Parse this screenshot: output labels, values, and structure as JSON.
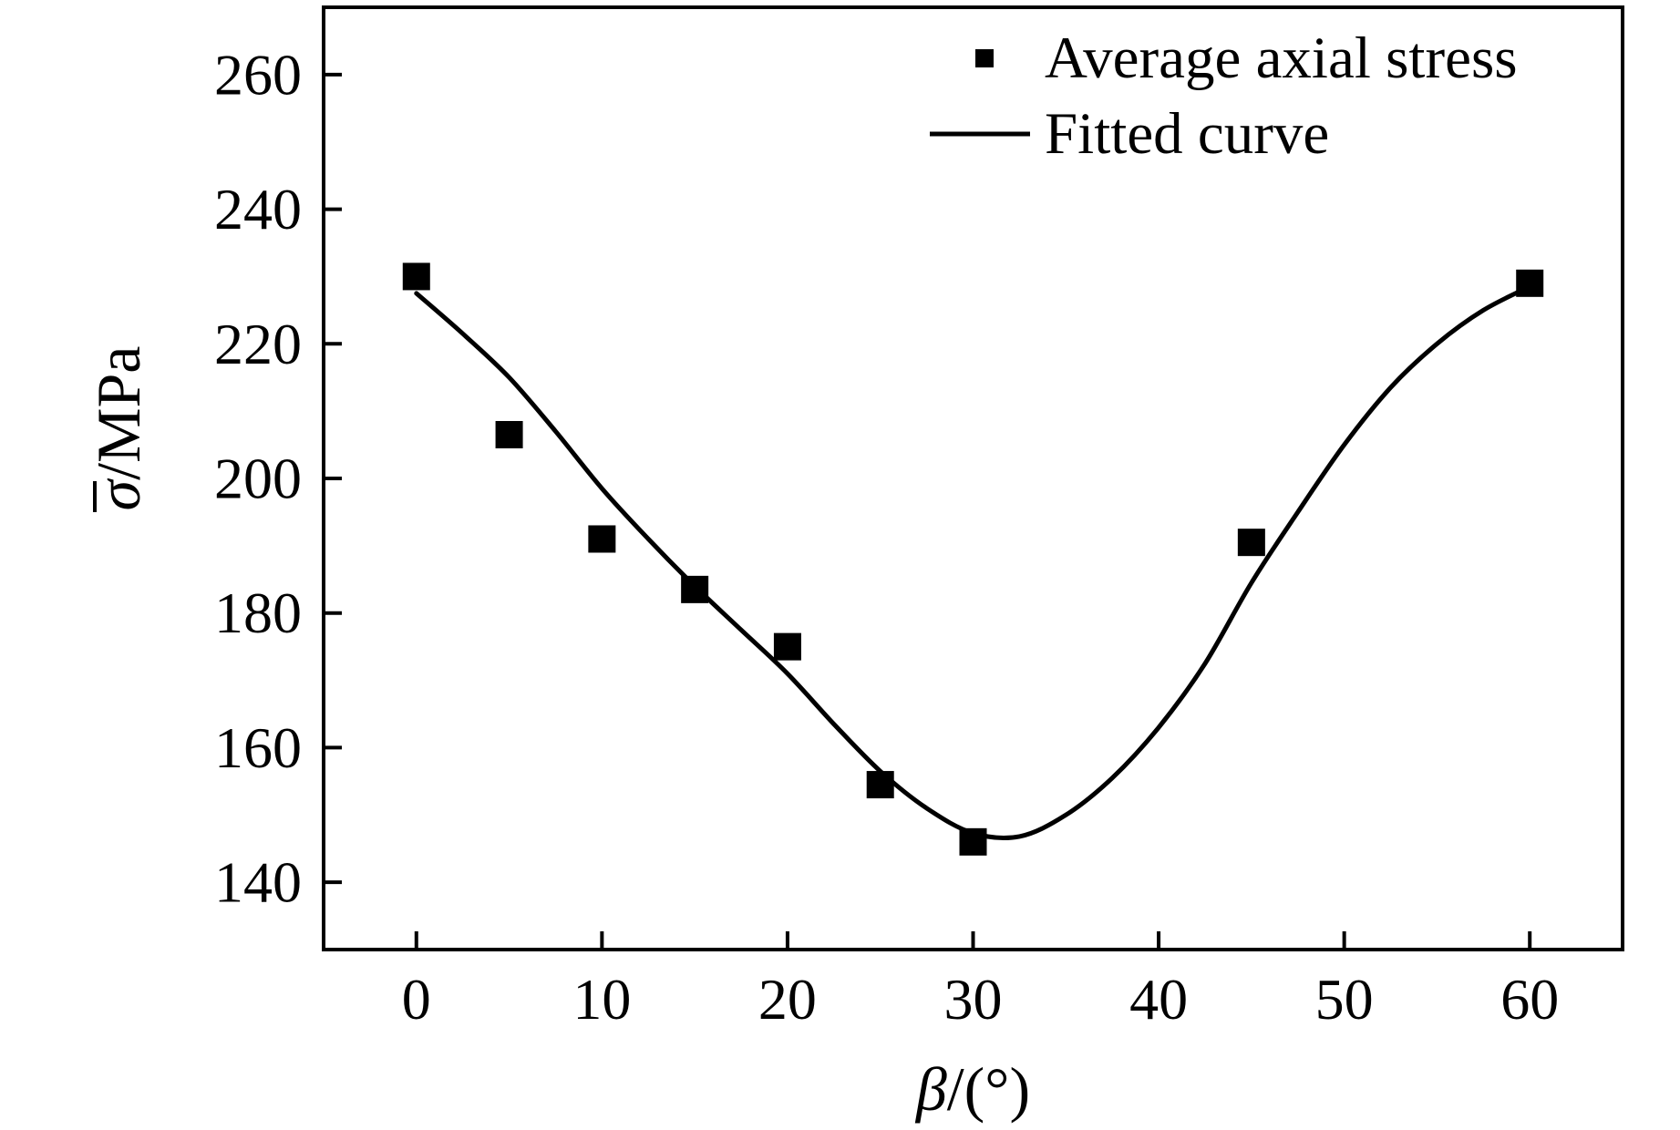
{
  "figure": {
    "background": "#ffffff",
    "ink_color": "#000000"
  },
  "chart_data": {
    "type": "scatter",
    "title": "",
    "xlabel": "β/(°)",
    "ylabel": "σ̄/MPa",
    "xlabel_parts": {
      "italic": "β",
      "rest": "/(°)"
    },
    "ylabel_parts": {
      "italic": "σ",
      "overbar": true,
      "rest": "/MPa"
    },
    "xlim": [
      -5,
      65
    ],
    "ylim": [
      130,
      270
    ],
    "x_ticks": [
      0,
      10,
      20,
      30,
      40,
      50,
      60
    ],
    "y_ticks": [
      140,
      160,
      180,
      200,
      220,
      240,
      260
    ],
    "grid": false,
    "legend": {
      "position": "top-right-inside",
      "entries": [
        {
          "label": "Average axial stress",
          "marker": "filled-square"
        },
        {
          "label": "Fitted curve",
          "marker": "line"
        }
      ]
    },
    "series": [
      {
        "name": "Average axial stress",
        "type": "scatter",
        "marker": "filled-square",
        "color": "#000000",
        "x": [
          0,
          5,
          10,
          15,
          20,
          25,
          30,
          45,
          60
        ],
        "y": [
          230,
          206.5,
          191,
          183.5,
          175,
          154.5,
          146,
          190.5,
          229
        ]
      },
      {
        "name": "Fitted curve",
        "type": "line",
        "color": "#000000",
        "x": [
          0,
          2.5,
          5,
          7.5,
          10,
          12.5,
          15,
          17.5,
          20,
          22.5,
          25,
          27.5,
          30,
          32.5,
          35,
          37.5,
          40,
          42.5,
          45,
          47.5,
          50,
          52.5,
          55,
          57.5,
          60
        ],
        "y": [
          227.5,
          221.5,
          215,
          207,
          198.5,
          191,
          184,
          177.5,
          171,
          163.5,
          156.5,
          151,
          147.3,
          146.8,
          150,
          155.5,
          163,
          172.5,
          184.5,
          195,
          205,
          213.5,
          220,
          225,
          228.5
        ]
      }
    ]
  }
}
